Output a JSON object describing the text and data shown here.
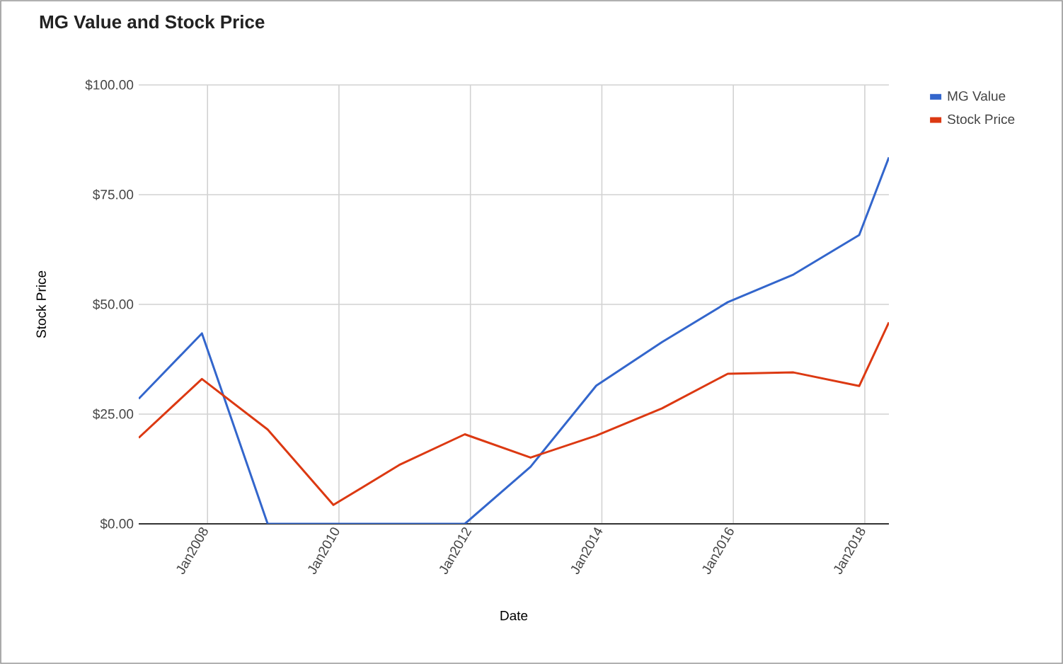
{
  "chart_data": {
    "type": "line",
    "title": "MG Value and Stock Price",
    "xlabel": "Date",
    "ylabel": "Stock Price",
    "x": [
      "2006-12-15",
      "2007-12-01",
      "2008-12-01",
      "2009-12-01",
      "2010-12-01",
      "2011-12-01",
      "2012-12-01",
      "2013-12-01",
      "2014-12-01",
      "2015-12-01",
      "2016-12-01",
      "2017-12-01",
      "2018-05-15"
    ],
    "series": [
      {
        "name": "MG Value",
        "color": "#3366cc",
        "values": [
          28.5,
          43.4,
          0,
          0,
          0,
          0,
          13,
          31.5,
          41.4,
          50.5,
          56.8,
          65.8,
          83.5
        ]
      },
      {
        "name": "Stock Price",
        "color": "#dc3912",
        "values": [
          19.6,
          33.0,
          21.5,
          4.3,
          13.4,
          20.4,
          15.1,
          20.1,
          26.3,
          34.2,
          34.5,
          31.4,
          45.9
        ]
      }
    ],
    "xlim": [
      "2006-12-15",
      "2018-05-15"
    ],
    "xticks": [
      {
        "value": "2008-01-01",
        "label": "Jan2008"
      },
      {
        "value": "2010-01-01",
        "label": "Jan2010"
      },
      {
        "value": "2012-01-01",
        "label": "Jan2012"
      },
      {
        "value": "2014-01-01",
        "label": "Jan2014"
      },
      {
        "value": "2016-01-01",
        "label": "Jan2016"
      },
      {
        "value": "2018-01-01",
        "label": "Jan2018"
      }
    ],
    "ylim": [
      0,
      100
    ],
    "yticks": [
      {
        "value": 0,
        "label": "$0.00"
      },
      {
        "value": 25,
        "label": "$25.00"
      },
      {
        "value": 50,
        "label": "$50.00"
      },
      {
        "value": 75,
        "label": "$75.00"
      },
      {
        "value": 100,
        "label": "$100.00"
      }
    ],
    "grid": true,
    "legend": "right"
  }
}
